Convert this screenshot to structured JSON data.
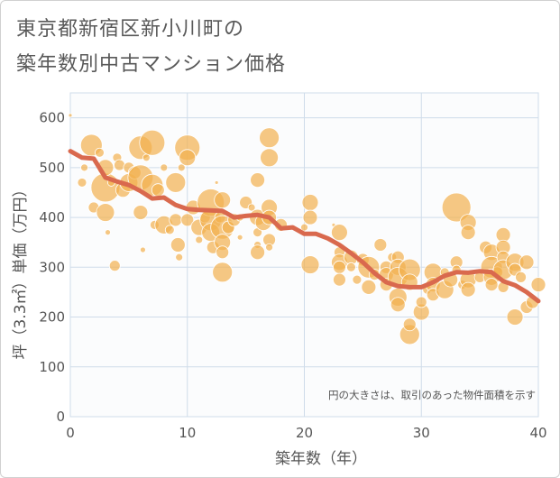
{
  "title": {
    "line1": "東京都新宿区新小川町の",
    "line2": "築年数別中古マンション価格"
  },
  "chart_data": {
    "type": "scatter",
    "xlabel": "築年数（年）",
    "ylabel": "坪（3.3㎡）単価（万円）",
    "xlim": [
      0,
      40
    ],
    "ylim": [
      0,
      650
    ],
    "xticks": [
      0,
      10,
      20,
      30,
      40
    ],
    "yticks": [
      0,
      100,
      200,
      300,
      400,
      500,
      600
    ],
    "grid": true,
    "note": "円の大きさは、取引のあった物件面積を示す",
    "colors": {
      "bubble": "#f2b04f",
      "trend": "#d9694e",
      "plot_bg": "#fbfcfd",
      "grid": "#cfdcea"
    },
    "trend": {
      "x": [
        0,
        1,
        2,
        3,
        4,
        5,
        6,
        7,
        8,
        9,
        10,
        11,
        12,
        13,
        14,
        15,
        16,
        17,
        18,
        19,
        20,
        21,
        22,
        23,
        24,
        25,
        26,
        27,
        28,
        29,
        30,
        31,
        32,
        33,
        34,
        35,
        36,
        37,
        38,
        39,
        40
      ],
      "y": [
        533,
        520,
        518,
        480,
        472,
        465,
        453,
        438,
        440,
        425,
        417,
        415,
        414,
        413,
        400,
        403,
        405,
        400,
        378,
        380,
        367,
        367,
        358,
        345,
        328,
        310,
        288,
        270,
        262,
        260,
        260,
        270,
        283,
        290,
        289,
        292,
        290,
        272,
        264,
        250,
        232
      ]
    },
    "points": [
      {
        "x": 0,
        "y": 605,
        "s": 2
      },
      {
        "x": 1,
        "y": 470,
        "s": 5
      },
      {
        "x": 1.2,
        "y": 500,
        "s": 4
      },
      {
        "x": 1.8,
        "y": 545,
        "s": 12
      },
      {
        "x": 2,
        "y": 420,
        "s": 6
      },
      {
        "x": 2.5,
        "y": 530,
        "s": 5
      },
      {
        "x": 3,
        "y": 460,
        "s": 16
      },
      {
        "x": 3,
        "y": 500,
        "s": 9
      },
      {
        "x": 3,
        "y": 410,
        "s": 10
      },
      {
        "x": 3.2,
        "y": 370,
        "s": 3
      },
      {
        "x": 3.5,
        "y": 470,
        "s": 4
      },
      {
        "x": 3.8,
        "y": 303,
        "s": 6
      },
      {
        "x": 4,
        "y": 520,
        "s": 5
      },
      {
        "x": 4.2,
        "y": 505,
        "s": 6
      },
      {
        "x": 4.5,
        "y": 455,
        "s": 8
      },
      {
        "x": 5,
        "y": 500,
        "s": 6
      },
      {
        "x": 5,
        "y": 470,
        "s": 10
      },
      {
        "x": 5.5,
        "y": 490,
        "s": 7
      },
      {
        "x": 6,
        "y": 540,
        "s": 13
      },
      {
        "x": 6,
        "y": 480,
        "s": 14
      },
      {
        "x": 6,
        "y": 410,
        "s": 8
      },
      {
        "x": 6.2,
        "y": 335,
        "s": 3
      },
      {
        "x": 6.5,
        "y": 520,
        "s": 4
      },
      {
        "x": 7,
        "y": 550,
        "s": 14
      },
      {
        "x": 7,
        "y": 465,
        "s": 12
      },
      {
        "x": 7.2,
        "y": 385,
        "s": 5
      },
      {
        "x": 7.5,
        "y": 455,
        "s": 7
      },
      {
        "x": 8,
        "y": 385,
        "s": 10
      },
      {
        "x": 8,
        "y": 500,
        "s": 4
      },
      {
        "x": 8.5,
        "y": 375,
        "s": 5
      },
      {
        "x": 9,
        "y": 470,
        "s": 11
      },
      {
        "x": 9,
        "y": 395,
        "s": 7
      },
      {
        "x": 9.2,
        "y": 345,
        "s": 8
      },
      {
        "x": 9.3,
        "y": 320,
        "s": 4
      },
      {
        "x": 9.5,
        "y": 500,
        "s": 4
      },
      {
        "x": 10,
        "y": 540,
        "s": 14
      },
      {
        "x": 10,
        "y": 520,
        "s": 9
      },
      {
        "x": 10,
        "y": 395,
        "s": 7
      },
      {
        "x": 10.5,
        "y": 420,
        "s": 8
      },
      {
        "x": 11,
        "y": 380,
        "s": 9
      },
      {
        "x": 11,
        "y": 355,
        "s": 4
      },
      {
        "x": 11.5,
        "y": 400,
        "s": 6
      },
      {
        "x": 12,
        "y": 430,
        "s": 15
      },
      {
        "x": 12,
        "y": 395,
        "s": 12
      },
      {
        "x": 12,
        "y": 370,
        "s": 10
      },
      {
        "x": 12.2,
        "y": 340,
        "s": 7
      },
      {
        "x": 12.5,
        "y": 470,
        "s": 2
      },
      {
        "x": 12.8,
        "y": 400,
        "s": 6
      },
      {
        "x": 13,
        "y": 435,
        "s": 9
      },
      {
        "x": 13,
        "y": 380,
        "s": 13
      },
      {
        "x": 13,
        "y": 350,
        "s": 9
      },
      {
        "x": 13,
        "y": 330,
        "s": 7
      },
      {
        "x": 13,
        "y": 290,
        "s": 11
      },
      {
        "x": 13.5,
        "y": 380,
        "s": 7
      },
      {
        "x": 14,
        "y": 395,
        "s": 7
      },
      {
        "x": 14.5,
        "y": 400,
        "s": 4
      },
      {
        "x": 14.5,
        "y": 360,
        "s": 3
      },
      {
        "x": 15,
        "y": 430,
        "s": 7
      },
      {
        "x": 15.5,
        "y": 420,
        "s": 4
      },
      {
        "x": 16,
        "y": 475,
        "s": 8
      },
      {
        "x": 16,
        "y": 400,
        "s": 9
      },
      {
        "x": 16,
        "y": 370,
        "s": 5
      },
      {
        "x": 16,
        "y": 345,
        "s": 4
      },
      {
        "x": 16,
        "y": 330,
        "s": 8
      },
      {
        "x": 16.5,
        "y": 390,
        "s": 9
      },
      {
        "x": 17,
        "y": 560,
        "s": 11
      },
      {
        "x": 17,
        "y": 520,
        "s": 10
      },
      {
        "x": 17,
        "y": 420,
        "s": 9
      },
      {
        "x": 17,
        "y": 400,
        "s": 8
      },
      {
        "x": 17,
        "y": 355,
        "s": 7
      },
      {
        "x": 17,
        "y": 340,
        "s": 4
      },
      {
        "x": 18,
        "y": 385,
        "s": 7
      },
      {
        "x": 20,
        "y": 380,
        "s": 4
      },
      {
        "x": 20.5,
        "y": 430,
        "s": 9
      },
      {
        "x": 20.5,
        "y": 400,
        "s": 8
      },
      {
        "x": 20.5,
        "y": 305,
        "s": 10
      },
      {
        "x": 22.5,
        "y": 385,
        "s": 2
      },
      {
        "x": 23,
        "y": 370,
        "s": 9
      },
      {
        "x": 23,
        "y": 330,
        "s": 6
      },
      {
        "x": 23,
        "y": 310,
        "s": 9
      },
      {
        "x": 23,
        "y": 300,
        "s": 7
      },
      {
        "x": 23,
        "y": 275,
        "s": 7
      },
      {
        "x": 24,
        "y": 320,
        "s": 8
      },
      {
        "x": 24,
        "y": 300,
        "s": 5
      },
      {
        "x": 24.5,
        "y": 275,
        "s": 5
      },
      {
        "x": 25,
        "y": 315,
        "s": 7
      },
      {
        "x": 25.5,
        "y": 300,
        "s": 12
      },
      {
        "x": 25.5,
        "y": 260,
        "s": 8
      },
      {
        "x": 26,
        "y": 285,
        "s": 6
      },
      {
        "x": 26.5,
        "y": 345,
        "s": 7
      },
      {
        "x": 27,
        "y": 300,
        "s": 7
      },
      {
        "x": 27,
        "y": 285,
        "s": 8
      },
      {
        "x": 27,
        "y": 265,
        "s": 7
      },
      {
        "x": 27.5,
        "y": 320,
        "s": 5
      },
      {
        "x": 28,
        "y": 320,
        "s": 7
      },
      {
        "x": 28,
        "y": 300,
        "s": 9
      },
      {
        "x": 28,
        "y": 280,
        "s": 11
      },
      {
        "x": 28,
        "y": 240,
        "s": 10
      },
      {
        "x": 28,
        "y": 225,
        "s": 8
      },
      {
        "x": 29,
        "y": 295,
        "s": 12
      },
      {
        "x": 29,
        "y": 270,
        "s": 9
      },
      {
        "x": 29,
        "y": 165,
        "s": 11
      },
      {
        "x": 29,
        "y": 185,
        "s": 7
      },
      {
        "x": 30,
        "y": 210,
        "s": 9
      },
      {
        "x": 30,
        "y": 230,
        "s": 6
      },
      {
        "x": 30.5,
        "y": 255,
        "s": 5
      },
      {
        "x": 31,
        "y": 290,
        "s": 10
      },
      {
        "x": 31,
        "y": 265,
        "s": 8
      },
      {
        "x": 31,
        "y": 245,
        "s": 7
      },
      {
        "x": 32,
        "y": 290,
        "s": 5
      },
      {
        "x": 32,
        "y": 255,
        "s": 10
      },
      {
        "x": 32.5,
        "y": 275,
        "s": 8
      },
      {
        "x": 33,
        "y": 420,
        "s": 16
      },
      {
        "x": 33,
        "y": 310,
        "s": 7
      },
      {
        "x": 33,
        "y": 295,
        "s": 5
      },
      {
        "x": 33.5,
        "y": 265,
        "s": 5
      },
      {
        "x": 34,
        "y": 390,
        "s": 9
      },
      {
        "x": 34,
        "y": 370,
        "s": 8
      },
      {
        "x": 34,
        "y": 275,
        "s": 9
      },
      {
        "x": 34,
        "y": 255,
        "s": 8
      },
      {
        "x": 35,
        "y": 280,
        "s": 6
      },
      {
        "x": 35.5,
        "y": 340,
        "s": 7
      },
      {
        "x": 36,
        "y": 330,
        "s": 9
      },
      {
        "x": 36,
        "y": 300,
        "s": 12
      },
      {
        "x": 36,
        "y": 280,
        "s": 9
      },
      {
        "x": 36,
        "y": 265,
        "s": 7
      },
      {
        "x": 36.5,
        "y": 290,
        "s": 6
      },
      {
        "x": 37,
        "y": 365,
        "s": 8
      },
      {
        "x": 37,
        "y": 340,
        "s": 8
      },
      {
        "x": 37,
        "y": 320,
        "s": 7
      },
      {
        "x": 37,
        "y": 295,
        "s": 11
      },
      {
        "x": 37,
        "y": 260,
        "s": 6
      },
      {
        "x": 38,
        "y": 310,
        "s": 10
      },
      {
        "x": 38,
        "y": 295,
        "s": 7
      },
      {
        "x": 38,
        "y": 200,
        "s": 9
      },
      {
        "x": 38.5,
        "y": 280,
        "s": 6
      },
      {
        "x": 39,
        "y": 310,
        "s": 8
      },
      {
        "x": 39,
        "y": 220,
        "s": 7
      },
      {
        "x": 39.5,
        "y": 230,
        "s": 7
      },
      {
        "x": 40,
        "y": 265,
        "s": 8
      }
    ]
  }
}
